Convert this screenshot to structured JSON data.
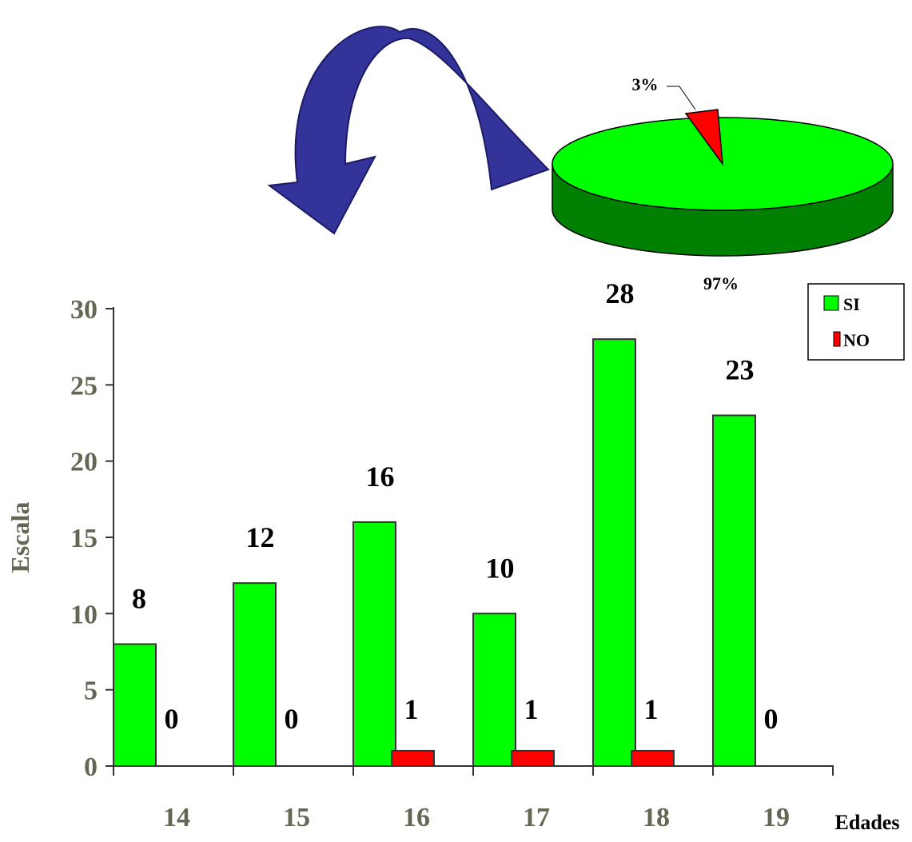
{
  "chart_data": [
    {
      "type": "bar",
      "categories": [
        "14",
        "15",
        "16",
        "17",
        "18",
        "19"
      ],
      "series": [
        {
          "name": "SI",
          "values": [
            8,
            12,
            16,
            10,
            28,
            23
          ],
          "color": "#00ff00"
        },
        {
          "name": "NO",
          "values": [
            0,
            0,
            1,
            1,
            1,
            0
          ],
          "color": "#ff0000"
        }
      ],
      "data_labels": {
        "SI": [
          "8",
          "12",
          "16",
          "10",
          "28",
          "23"
        ],
        "NO": [
          "0",
          "0",
          "1",
          "1",
          "1",
          "0"
        ]
      },
      "xlabel": "Edades",
      "ylabel": "Escala",
      "ylim": [
        0,
        30
      ],
      "yticks": [
        "0",
        "5",
        "10",
        "15",
        "20",
        "25",
        "30"
      ],
      "grid": false,
      "legend": "top-right"
    },
    {
      "type": "pie",
      "style": "3d",
      "labels": [
        "SI",
        "NO"
      ],
      "values": [
        97,
        3
      ],
      "value_labels": [
        "97%",
        "3%"
      ],
      "colors": [
        "#00ff00",
        "#ff0000"
      ],
      "exploded": "NO"
    }
  ],
  "arrow": {
    "icon": "curved-arrow-icon",
    "color": "#333399"
  }
}
